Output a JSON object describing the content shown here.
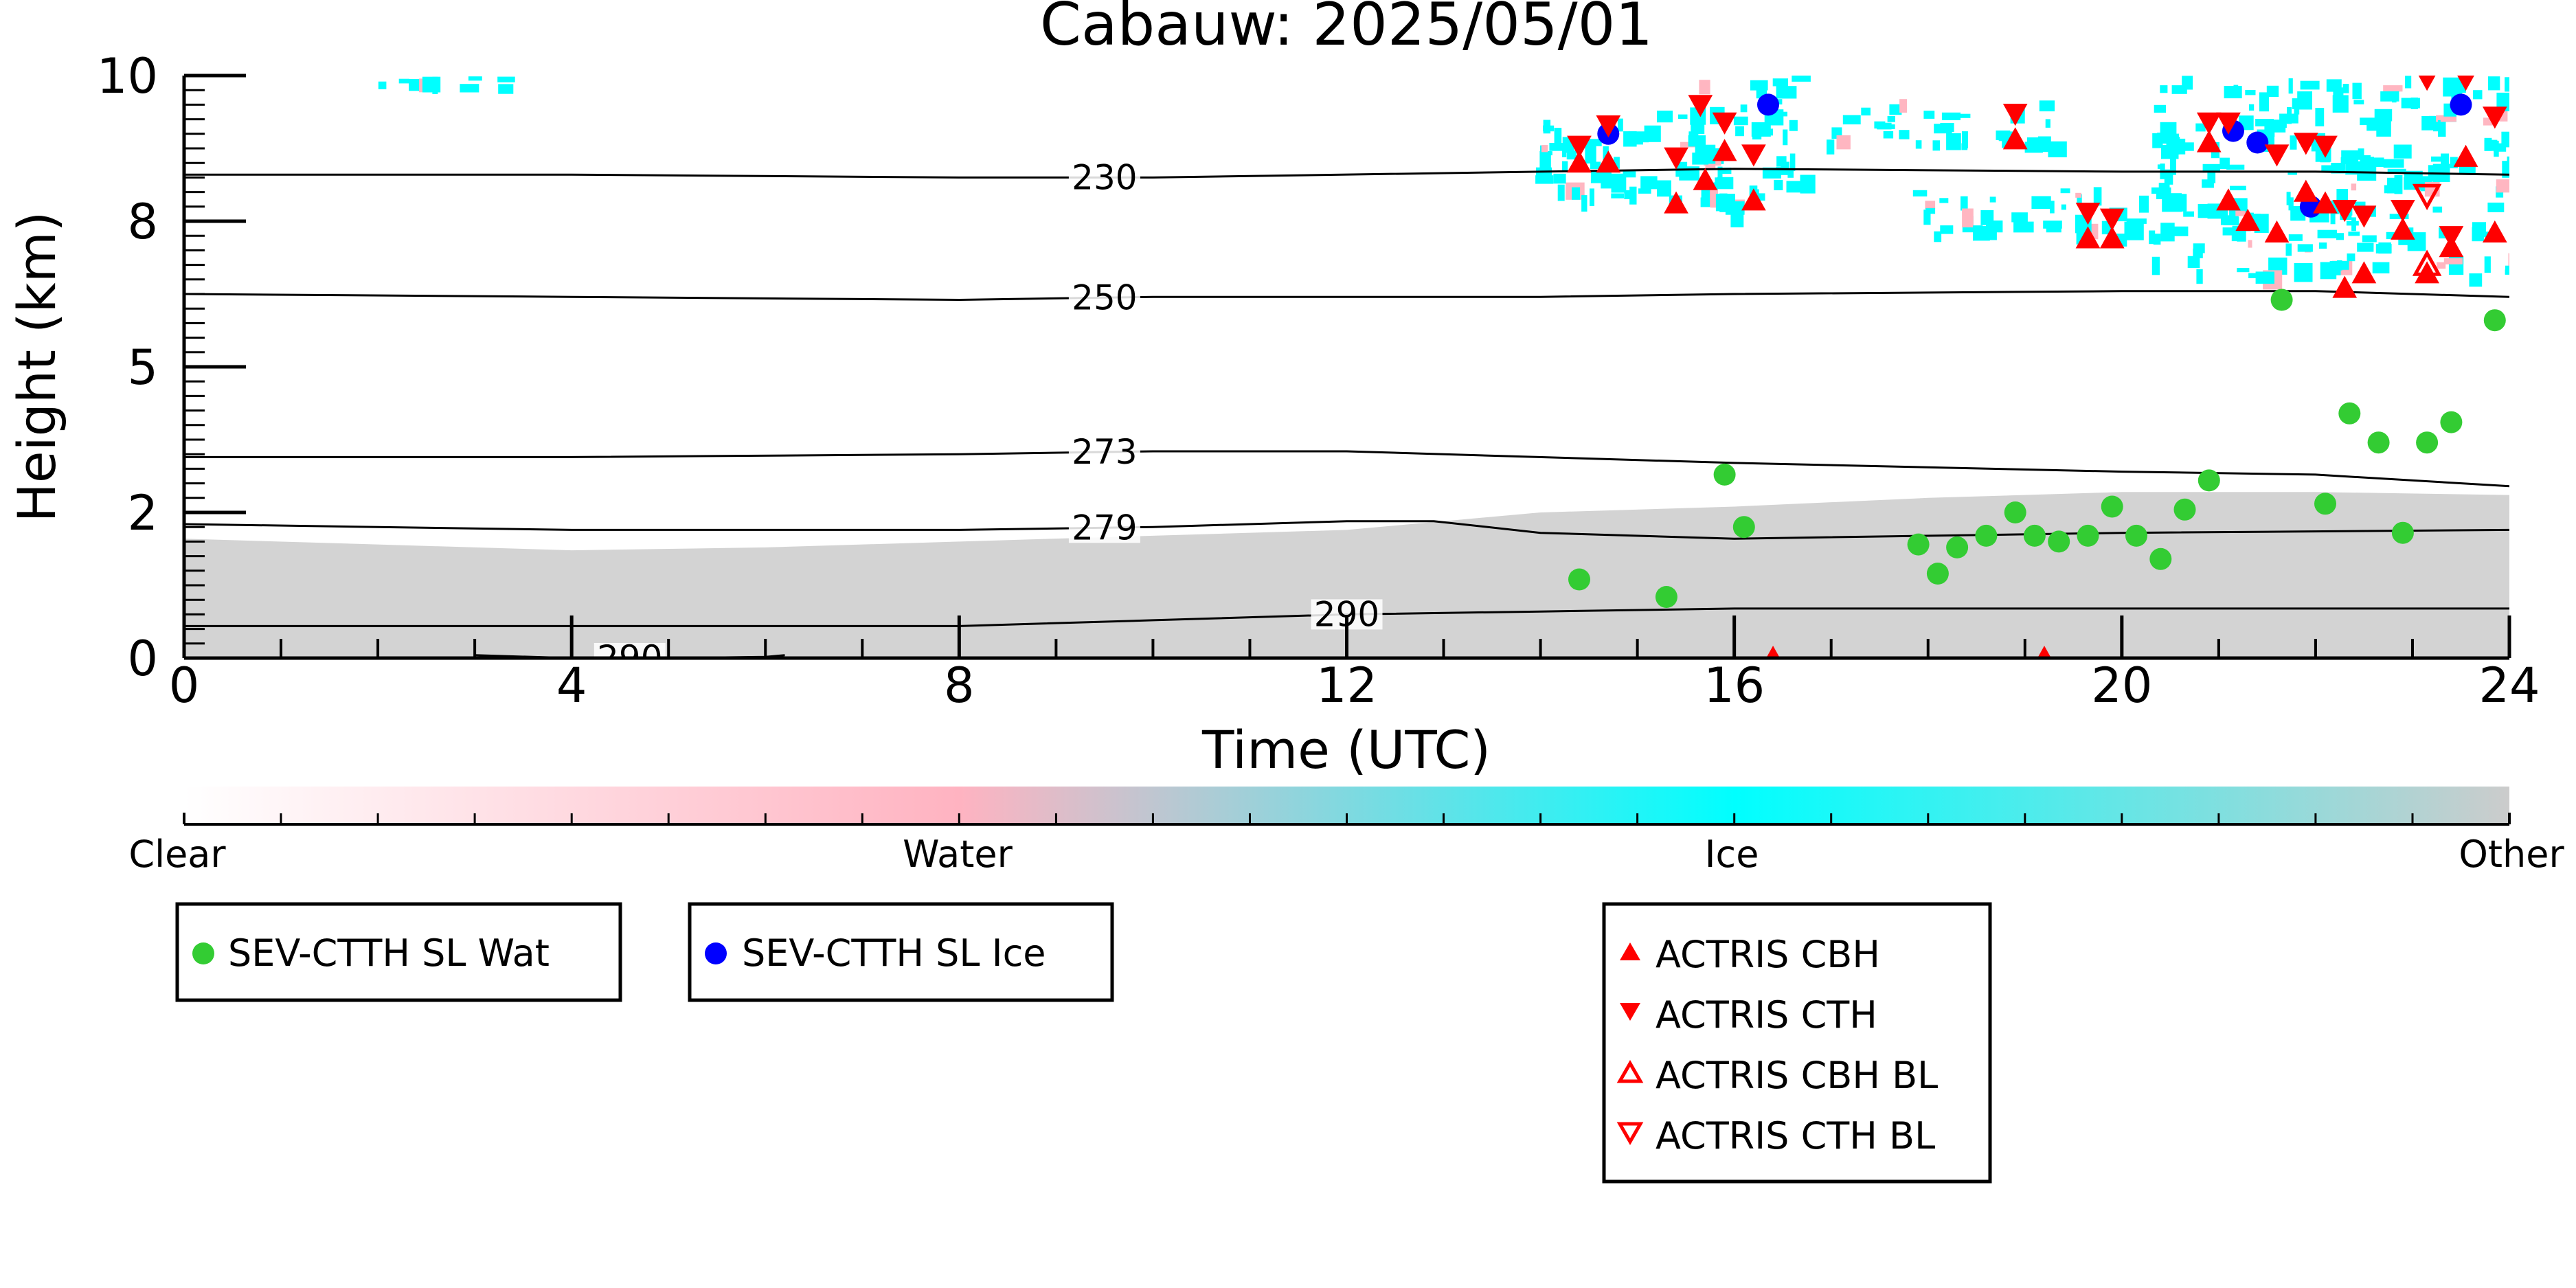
{
  "chart_data": {
    "type": "scatter",
    "title": "Cabauw: 2025/05/01",
    "xlabel": "Time (UTC)",
    "ylabel": "Height (km)",
    "xlim": [
      0,
      24
    ],
    "ylim": [
      0,
      10
    ],
    "x_ticks": [
      0,
      4,
      8,
      12,
      16,
      20,
      24
    ],
    "y_ticks": [
      {
        "value": 0,
        "label": "0"
      },
      {
        "value": 2.5,
        "label": "2"
      },
      {
        "value": 5,
        "label": "5"
      },
      {
        "value": 7.5,
        "label": "8"
      },
      {
        "value": 10,
        "label": "10"
      }
    ],
    "classification": {
      "colorbar": {
        "labels": [
          "Clear",
          "Water",
          "Ice",
          "Other"
        ],
        "colors": [
          "#ffffff",
          "#ffb3c1",
          "#00ffff",
          "#cccccc"
        ]
      },
      "cloud_colors": {
        "other": "#d3d3d3",
        "ice": "#00ffff",
        "water": "#ffb6c1"
      },
      "boundary_layer_top": [
        [
          0,
          2.05
        ],
        [
          2,
          1.95
        ],
        [
          4,
          1.85
        ],
        [
          6,
          1.9
        ],
        [
          8,
          2.0
        ],
        [
          10,
          2.1
        ],
        [
          12,
          2.2
        ],
        [
          13,
          2.35
        ],
        [
          14,
          2.5
        ],
        [
          16,
          2.6
        ],
        [
          18,
          2.75
        ],
        [
          20,
          2.85
        ],
        [
          22,
          2.85
        ],
        [
          24,
          2.8
        ]
      ],
      "ice_regions": [
        {
          "x": [
            2.0,
            3.3
          ],
          "y": [
            9.85,
            10.0
          ]
        },
        {
          "x": [
            13.9,
            15.9
          ],
          "y": [
            7.9,
            9.4
          ]
        },
        {
          "x": [
            15.3,
            16.7
          ],
          "y": [
            7.7,
            10.0
          ]
        },
        {
          "x": [
            16.9,
            19.3
          ],
          "y": [
            8.8,
            9.6
          ]
        },
        {
          "x": [
            17.8,
            20.5
          ],
          "y": [
            7.2,
            8.1
          ]
        },
        {
          "x": [
            20.3,
            24.0
          ],
          "y": [
            6.6,
            10.0
          ]
        }
      ]
    },
    "contours": [
      {
        "label": "230",
        "x": [
          0,
          4,
          8,
          10,
          14,
          16,
          20,
          22,
          24
        ],
        "y": [
          8.3,
          8.3,
          8.25,
          8.25,
          8.35,
          8.4,
          8.35,
          8.35,
          8.3
        ]
      },
      {
        "label": "250",
        "x": [
          0,
          4,
          8,
          10,
          14,
          16,
          20,
          22,
          24
        ],
        "y": [
          6.25,
          6.2,
          6.15,
          6.2,
          6.2,
          6.25,
          6.3,
          6.3,
          6.2
        ]
      },
      {
        "label": "273",
        "x": [
          0,
          4,
          8,
          10,
          12,
          16,
          20,
          22,
          24
        ],
        "y": [
          3.45,
          3.45,
          3.5,
          3.55,
          3.55,
          3.35,
          3.2,
          3.15,
          2.95
        ]
      },
      {
        "label": "279",
        "x": [
          0,
          4,
          8,
          10,
          12,
          12.9,
          14,
          16,
          20,
          24
        ],
        "y": [
          2.3,
          2.2,
          2.2,
          2.25,
          2.35,
          2.35,
          2.15,
          2.05,
          2.15,
          2.2
        ]
      },
      {
        "label": "290",
        "x": [
          0,
          4,
          8,
          10,
          12,
          14,
          16,
          20,
          24
        ],
        "y": [
          0.55,
          0.55,
          0.55,
          0.65,
          0.75,
          0.8,
          0.85,
          0.85,
          0.85
        ]
      },
      {
        "label": "290",
        "x": [
          3,
          4,
          5,
          6,
          6.2
        ],
        "y": [
          0.05,
          0.0,
          0.0,
          0.02,
          0.05
        ]
      }
    ],
    "series": [
      {
        "name": "SEV-CTTH SL Wat",
        "color": "#33cc33",
        "marker": "circle",
        "x": [
          14.4,
          15.3,
          15.9,
          16.1,
          17.9,
          18.1,
          18.3,
          18.6,
          18.9,
          19.1,
          19.35,
          19.65,
          19.9,
          20.15,
          20.4,
          20.65,
          20.9,
          21.65,
          22.1,
          22.35,
          22.65,
          22.9,
          23.15,
          23.4,
          23.85
        ],
        "y": [
          1.35,
          1.05,
          3.15,
          2.25,
          1.95,
          1.45,
          1.9,
          2.1,
          2.5,
          2.1,
          2.0,
          2.1,
          2.6,
          2.1,
          1.7,
          2.55,
          3.05,
          6.15,
          2.65,
          4.2,
          3.7,
          2.15,
          3.7,
          4.05,
          5.8
        ]
      },
      {
        "name": "SEV-CTTH SL Ice",
        "color": "#0000ff",
        "marker": "circle",
        "x": [
          14.7,
          16.35,
          21.15,
          21.4,
          21.95,
          23.5
        ],
        "y": [
          9.0,
          9.5,
          9.05,
          8.85,
          7.75,
          9.5
        ]
      },
      {
        "name": "ACTRIS CBH",
        "color": "#ff0000",
        "marker": "triangle-up",
        "x": [
          14.4,
          14.7,
          15.4,
          15.7,
          15.9,
          16.2,
          16.4,
          18.9,
          19.2,
          19.65,
          19.9,
          20.9,
          21.1,
          21.3,
          21.6,
          21.9,
          22.1,
          22.3,
          22.5,
          22.9,
          23.15,
          23.4,
          23.55,
          23.85
        ],
        "y": [
          8.5,
          8.5,
          7.8,
          8.2,
          8.7,
          7.85,
          0.0,
          8.9,
          0.0,
          7.2,
          7.2,
          8.85,
          7.85,
          7.5,
          7.3,
          8.0,
          7.8,
          6.35,
          6.6,
          7.35,
          6.6,
          7.05,
          8.6,
          7.3
        ]
      },
      {
        "name": "ACTRIS CTH",
        "color": "#ff0000",
        "marker": "triangle-down",
        "x": [
          14.4,
          14.7,
          15.4,
          15.65,
          15.9,
          16.2,
          18.9,
          19.65,
          19.9,
          20.9,
          21.1,
          21.6,
          21.9,
          22.1,
          22.3,
          22.5,
          22.9,
          23.15,
          23.4,
          23.55,
          23.85
        ],
        "y": [
          8.8,
          9.15,
          8.6,
          9.5,
          9.2,
          8.65,
          9.35,
          7.65,
          7.55,
          9.2,
          9.2,
          8.65,
          8.85,
          8.8,
          7.7,
          7.6,
          7.7,
          9.95,
          7.25,
          9.95,
          9.3
        ]
      },
      {
        "name": "ACTRIS CBH BL",
        "color": "#ff0000",
        "marker": "triangle-up-open",
        "x": [
          23.15
        ],
        "y": [
          6.75
        ]
      },
      {
        "name": "ACTRIS CTH BL",
        "color": "#ff0000",
        "marker": "triangle-down-open",
        "x": [
          23.15
        ],
        "y": [
          7.95
        ]
      }
    ],
    "legends": [
      [
        "SEV-CTTH SL Wat"
      ],
      [
        "SEV-CTTH SL Ice"
      ],
      [
        "ACTRIS CBH",
        "ACTRIS CTH",
        "ACTRIS CBH BL",
        "ACTRIS CTH BL"
      ]
    ]
  }
}
